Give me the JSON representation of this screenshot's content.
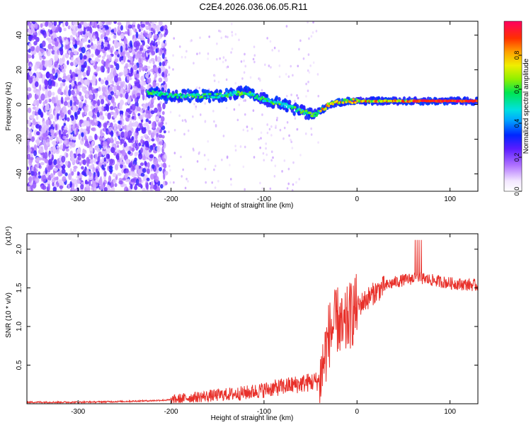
{
  "title": "C2E4.2026.036.06.05.R11",
  "colors": {
    "snr_line": "#e8302a",
    "spectrogram_low": "#7b2cff",
    "spectrogram_mid": "#19e07a",
    "spectrogram_high": "#e8302a"
  },
  "chart_data": [
    {
      "type": "heatmap",
      "title": "C2E4.2026.036.06.05.R11",
      "xlabel": "Height of straight line (km)",
      "ylabel": "Frequency (Hz)",
      "xlim": [
        -355,
        130
      ],
      "ylim": [
        -50,
        48
      ],
      "x_ticks": [
        "-300",
        "-200",
        "-100",
        "0",
        "100"
      ],
      "y_ticks": [
        "40",
        "20",
        "0",
        "-20",
        "-40"
      ],
      "colorbar": {
        "label": "Normalized spectral amplitude",
        "range": [
          0,
          1
        ],
        "ticks": [
          "0.0",
          "0.2",
          "0.4",
          "0.6",
          "0.8"
        ]
      },
      "ridge": {
        "description_x": [
          -220,
          -200,
          -150,
          -120,
          -100,
          -80,
          -60,
          -45,
          -30,
          -10,
          0,
          50,
          100,
          130
        ],
        "frequency_hz": [
          7,
          5,
          5,
          7,
          3,
          0,
          -4,
          -6,
          0,
          2,
          2,
          2,
          2,
          2
        ]
      }
    },
    {
      "type": "line",
      "xlabel": "Height of straight line (km)",
      "ylabel": "SNR (10 * v/v)",
      "y_multiplier": "(x10⁴)",
      "xlim": [
        -355,
        130
      ],
      "ylim": [
        0,
        2.2
      ],
      "x_ticks": [
        "-300",
        "-200",
        "-100",
        "0",
        "100"
      ],
      "y_ticks": [
        "0.5",
        "1.0",
        "1.5",
        "2.0"
      ],
      "series": [
        {
          "x": [
            -355,
            -300,
            -250,
            -220,
            -200,
            -180,
            -160,
            -140,
            -120,
            -100,
            -80,
            -60,
            -50,
            -40,
            -35,
            -30,
            -25,
            -20,
            -15,
            -10,
            0,
            10,
            20,
            30,
            40,
            50,
            60,
            70,
            80,
            90,
            100,
            110,
            120,
            130
          ],
          "y": [
            0.02,
            0.02,
            0.03,
            0.04,
            0.05,
            0.08,
            0.1,
            0.12,
            0.14,
            0.18,
            0.22,
            0.26,
            0.28,
            0.3,
            0.6,
            0.9,
            1.0,
            1.1,
            0.9,
            1.1,
            1.25,
            1.35,
            1.45,
            1.52,
            1.57,
            1.6,
            1.62,
            1.62,
            1.6,
            1.58,
            1.56,
            1.55,
            1.54,
            1.53
          ]
        }
      ]
    }
  ]
}
